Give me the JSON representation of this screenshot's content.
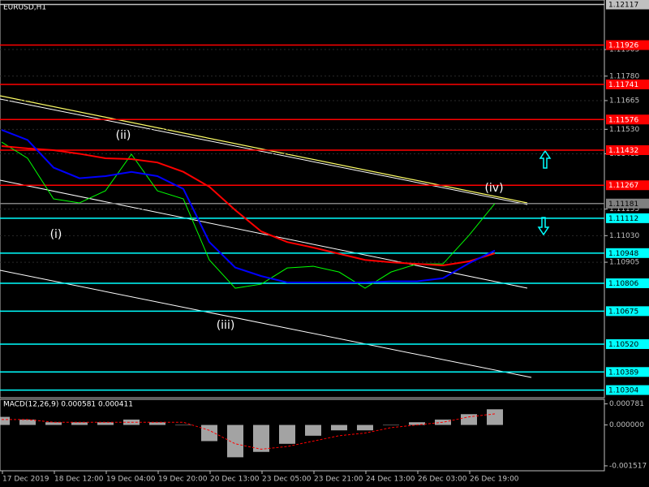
{
  "chart_data": [
    {
      "type": "price",
      "title": "EURUSD,H1",
      "ylim": [
        1.10268,
        1.12138
      ],
      "yticks": [
        {
          "value": 1.11905,
          "label": "1.11905"
        },
        {
          "value": 1.1178,
          "label": "1.11780"
        },
        {
          "value": 1.11665,
          "label": "1.11665"
        },
        {
          "value": 1.1153,
          "label": "1.11530"
        },
        {
          "value": 1.11415,
          "label": "1.11415"
        },
        {
          "value": 1.11155,
          "label": "1.11155"
        },
        {
          "value": 1.1103,
          "label": "1.11030"
        },
        {
          "value": 1.10905,
          "label": "1.10905"
        }
      ],
      "grid": true,
      "levels": [
        {
          "value": 1.12117,
          "label": "1.12117",
          "color": "#c0c0c0"
        },
        {
          "value": 1.11926,
          "label": "1.11926",
          "color": "#ff0000"
        },
        {
          "value": 1.11741,
          "label": "1.11741",
          "color": "#ff0000"
        },
        {
          "value": 1.11576,
          "label": "1.11576",
          "color": "#ff0000"
        },
        {
          "value": 1.11432,
          "label": "1.11432",
          "color": "#ff0000"
        },
        {
          "value": 1.11267,
          "label": "1.11267",
          "color": "#ff0000"
        },
        {
          "value": 1.11181,
          "label": "1.11181",
          "color": "#808080"
        },
        {
          "value": 1.11112,
          "label": "1.11112",
          "color": "#00ffff"
        },
        {
          "value": 1.10948,
          "label": "1.10948",
          "color": "#00ffff"
        },
        {
          "value": 1.10806,
          "label": "1.10806",
          "color": "#00ffff"
        },
        {
          "value": 1.10675,
          "label": "1.10675",
          "color": "#00ffff"
        },
        {
          "value": 1.1052,
          "label": "1.10520",
          "color": "#00ffff"
        },
        {
          "value": 1.10389,
          "label": "1.10389",
          "color": "#00ffff"
        },
        {
          "value": 1.10304,
          "label": "1.10304",
          "color": "#00ffff"
        }
      ],
      "annotations": [
        "(i)",
        "(ii)",
        "(iii)",
        "(iv)"
      ],
      "time_labels": [
        "17 Dec 2019",
        "18 Dec 12:00",
        "19 Dec 04:00",
        "19 Dec 20:00",
        "20 Dec 13:00",
        "23 Dec 05:00",
        "23 Dec 21:00",
        "24 Dec 13:00",
        "26 Dec 03:00",
        "26 Dec 19:00"
      ],
      "series": [
        {
          "color": "#00ff00",
          "values": [
            1.1147,
            1.11394,
            1.11203,
            1.11184,
            1.11241,
            1.11413,
            1.11241,
            1.11203,
            1.10916,
            1.10783,
            1.10802,
            1.10878,
            1.10886,
            1.10859,
            1.10783,
            1.10859,
            1.10897,
            1.10897,
            1.11031,
            1.11181
          ]
        },
        {
          "color": "#ff0000",
          "values": [
            1.11451,
            1.1144,
            1.11432,
            1.11415,
            1.11394,
            1.1139,
            1.11374,
            1.1133,
            1.1126,
            1.1115,
            1.1105,
            1.11,
            1.10974,
            1.10945,
            1.10916,
            1.10905,
            1.10897,
            1.1089,
            1.10909,
            1.10947
          ]
        },
        {
          "color": "#0000ff",
          "values": [
            1.11527,
            1.1148,
            1.1135,
            1.113,
            1.1131,
            1.1133,
            1.1131,
            1.1125,
            1.11,
            1.1088,
            1.1084,
            1.1081,
            1.1081,
            1.1081,
            1.1081,
            1.10815,
            1.10815,
            1.1083,
            1.109,
            1.1096
          ]
        }
      ]
    },
    {
      "type": "macd",
      "title": "MACD(12,26,9) 0.000581 0.000411",
      "ylim": [
        -0.0017,
        0.00095
      ],
      "yticks": [
        {
          "value": 0.000781,
          "label": "0.000781"
        },
        {
          "value": 0,
          "label": "0.000000"
        },
        {
          "value": -0.001517,
          "label": "-0.001517"
        }
      ],
      "series": [
        {
          "color": "#c0c0c0",
          "values": [
            0.0003,
            0.0002,
            0.0001,
            0.0001,
            0.0001,
            0.0002,
            0.0001,
            0,
            -0.0006,
            -0.0012,
            -0.001,
            -0.0007,
            -0.0004,
            -0.0002,
            -0.0002,
            0,
            0.0001,
            0.0002,
            0.0004,
            0.000581
          ]
        },
        {
          "color": "#ff0000",
          "values": [
            0.0002,
            0.0002,
            0.0001,
            0.0001,
            0.0001,
            0.0001,
            0.0001,
            0.0001,
            -0.0002,
            -0.0007,
            -0.0009,
            -0.0008,
            -0.0006,
            -0.0004,
            -0.0003,
            -0.0001,
            0,
            0.0001,
            0.0003,
            0.000411
          ]
        }
      ]
    }
  ]
}
